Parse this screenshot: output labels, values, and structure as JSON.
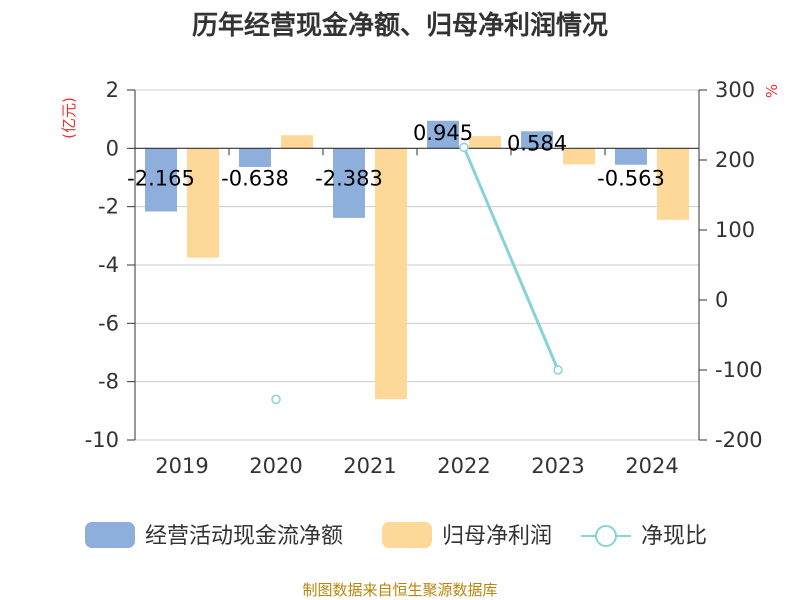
{
  "chart_data": {
    "type": "bar",
    "title": "历年经营现金净额、归母净利润情况",
    "categories": [
      "2019",
      "2020",
      "2021",
      "2022",
      "2023",
      "2024"
    ],
    "series": [
      {
        "name": "经营活动现金流净额",
        "type": "bar",
        "axis": "left",
        "color": "#8eaedb",
        "values": [
          -2.165,
          -0.638,
          -2.383,
          0.945,
          0.584,
          -0.563
        ],
        "labels": [
          "-2.165",
          "-0.638",
          "-2.383",
          "0.945",
          "0.584",
          "-0.563"
        ]
      },
      {
        "name": "归母净利润",
        "type": "bar",
        "axis": "left",
        "color": "#fdd898",
        "values": [
          -3.75,
          0.45,
          -8.6,
          0.42,
          -0.55,
          -2.45
        ]
      },
      {
        "name": "净现比",
        "type": "line",
        "axis": "right",
        "color": "#87d3d8",
        "values": [
          null,
          -142,
          null,
          218,
          -100,
          null
        ]
      }
    ],
    "y_left": {
      "label": "(亿元)",
      "min": -10,
      "max": 2,
      "ticks": [
        "2",
        "0",
        "-2",
        "-4",
        "-6",
        "-8",
        "-10"
      ]
    },
    "y_right": {
      "label": "%",
      "min": -200,
      "max": 300,
      "ticks": [
        "300",
        "200",
        "100",
        "0",
        "-100",
        "-200"
      ]
    },
    "legend_position": "bottom",
    "grid": true
  },
  "source": "制图数据来自恒生聚源数据库"
}
